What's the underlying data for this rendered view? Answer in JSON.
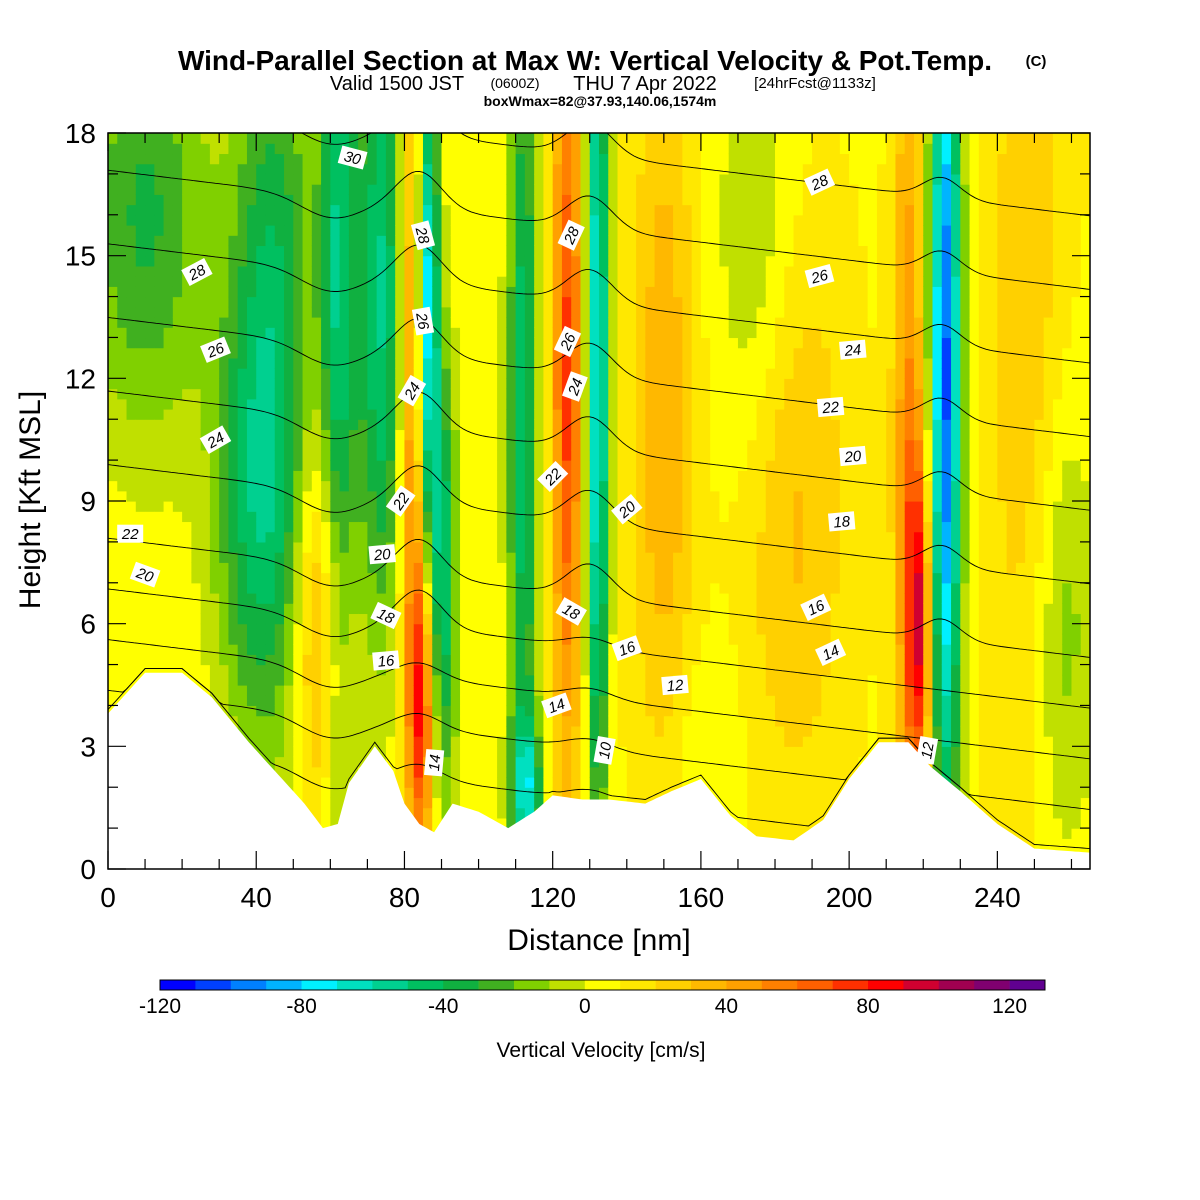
{
  "header": {
    "title": "Wind-Parallel Section at Max W: Vertical Velocity & Pot.Temp.",
    "title_mark": "(C)",
    "valid_prefix": "Valid 1500 JST",
    "valid_z": "(0600Z)",
    "valid_date": "THU 7 Apr 2022",
    "valid_fcst": "[24hrFcst@1133z]",
    "box_info": "boxWmax=82@37.93,140.06,1574m"
  },
  "chart_data": {
    "type": "heatmap",
    "xlabel": "Distance [nm]",
    "ylabel": "Height [Kft MSL]",
    "xlim": [
      0,
      265
    ],
    "ylim": [
      0,
      18
    ],
    "x_ticks": [
      0,
      40,
      80,
      120,
      160,
      200,
      240
    ],
    "y_ticks": [
      0,
      3,
      6,
      9,
      12,
      15,
      18
    ],
    "x_minor_step": 10,
    "y_minor_step": 1,
    "colorbar": {
      "label": "Vertical Velocity [cm/s]",
      "min": -120,
      "max": 130,
      "step": 10,
      "tick_values": [
        -120,
        -80,
        -40,
        0,
        40,
        80,
        120
      ],
      "colors": [
        "#0000ff",
        "#0040ff",
        "#0080ff",
        "#00b4ff",
        "#00f0ff",
        "#00e0c0",
        "#00d090",
        "#00c060",
        "#10b040",
        "#40b020",
        "#80d000",
        "#c0e000",
        "#ffff00",
        "#ffe800",
        "#ffd000",
        "#ffb800",
        "#ffa000",
        "#ff8000",
        "#ff6000",
        "#ff3000",
        "#ff0000",
        "#d00030",
        "#a00050",
        "#800070",
        "#600090"
      ]
    },
    "terrain_kft": [
      [
        0,
        3.8
      ],
      [
        5,
        4.3
      ],
      [
        10,
        4.8
      ],
      [
        20,
        4.8
      ],
      [
        28,
        4.2
      ],
      [
        38,
        3.1
      ],
      [
        45,
        2.4
      ],
      [
        53,
        1.6
      ],
      [
        58,
        1.0
      ],
      [
        62,
        1.1
      ],
      [
        65,
        2.1
      ],
      [
        72,
        3.0
      ],
      [
        77,
        2.4
      ],
      [
        80,
        1.6
      ],
      [
        84,
        1.1
      ],
      [
        88,
        0.9
      ],
      [
        93,
        1.6
      ],
      [
        100,
        1.4
      ],
      [
        108,
        1.0
      ],
      [
        115,
        1.4
      ],
      [
        120,
        1.8
      ],
      [
        128,
        1.7
      ],
      [
        135,
        1.7
      ],
      [
        145,
        1.6
      ],
      [
        152,
        1.9
      ],
      [
        160,
        2.2
      ],
      [
        168,
        1.3
      ],
      [
        175,
        0.8
      ],
      [
        185,
        0.7
      ],
      [
        193,
        1.2
      ],
      [
        200,
        2.2
      ],
      [
        208,
        3.1
      ],
      [
        216,
        3.1
      ],
      [
        222,
        2.5
      ],
      [
        230,
        1.9
      ],
      [
        240,
        1.1
      ],
      [
        250,
        0.5
      ],
      [
        265,
        0.4
      ]
    ],
    "w_features": [
      {
        "x": 10,
        "z": 16,
        "w": -40,
        "sx": 12,
        "sz": 4
      },
      {
        "x": 45,
        "z": 13,
        "w": -45,
        "sx": 8,
        "sz": 7
      },
      {
        "x": 38,
        "z": 9,
        "w": -30,
        "sx": 8,
        "sz": 4
      },
      {
        "x": 62,
        "z": 13,
        "w": -55,
        "sx": 3.5,
        "sz": 10
      },
      {
        "x": 58,
        "z": 6,
        "w": 45,
        "sx": 5,
        "sz": 3.5
      },
      {
        "x": 74,
        "z": 14,
        "w": -60,
        "sx": 5,
        "sz": 6
      },
      {
        "x": 83,
        "z": 12,
        "w": 70,
        "sx": 3,
        "sz": 7
      },
      {
        "x": 86,
        "z": 14,
        "w": -110,
        "sx": 2.2,
        "sz": 4.5
      },
      {
        "x": 90,
        "z": 7,
        "w": -60,
        "sx": 3,
        "sz": 4
      },
      {
        "x": 85,
        "z": 4,
        "w": 60,
        "sx": 2.5,
        "sz": 2.5
      },
      {
        "x": 112,
        "z": 11,
        "w": -55,
        "sx": 3,
        "sz": 8
      },
      {
        "x": 113,
        "z": 2,
        "w": -55,
        "sx": 3,
        "sz": 1.2
      },
      {
        "x": 124,
        "z": 12,
        "w": 65,
        "sx": 3,
        "sz": 7
      },
      {
        "x": 132,
        "z": 12,
        "w": -85,
        "sx": 2.2,
        "sz": 8
      },
      {
        "x": 150,
        "z": 11,
        "w": 30,
        "sx": 6,
        "sz": 7
      },
      {
        "x": 175,
        "z": 15,
        "w": -20,
        "sx": 8,
        "sz": 4
      },
      {
        "x": 185,
        "z": 9,
        "w": 25,
        "sx": 10,
        "sz": 5
      },
      {
        "x": 160,
        "z": 3,
        "w": -10,
        "sx": 8,
        "sz": 2
      },
      {
        "x": 219,
        "z": 6,
        "w": 70,
        "sx": 2.5,
        "sz": 3
      },
      {
        "x": 226,
        "z": 12,
        "w": -110,
        "sx": 3,
        "sz": 8
      },
      {
        "x": 216,
        "z": 11,
        "w": 40,
        "sx": 3,
        "sz": 8
      },
      {
        "x": 248,
        "z": 13,
        "w": 20,
        "sx": 8,
        "sz": 8
      },
      {
        "x": 258,
        "z": 6,
        "w": -25,
        "sx": 6,
        "sz": 4
      }
    ],
    "theta_contours": {
      "levels": [
        10,
        12,
        14,
        16,
        18,
        20,
        22,
        24,
        26,
        28,
        30
      ],
      "labels": [
        {
          "text": "30",
          "x": 66,
          "z": 17.4,
          "rot": 15
        },
        {
          "text": "28",
          "x": 24,
          "z": 14.6,
          "rot": -28
        },
        {
          "text": "26",
          "x": 29,
          "z": 12.7,
          "rot": -22
        },
        {
          "text": "24",
          "x": 29,
          "z": 10.5,
          "rot": -30
        },
        {
          "text": "22",
          "x": 6,
          "z": 8.2,
          "rot": 0
        },
        {
          "text": "20",
          "x": 10,
          "z": 7.2,
          "rot": 20
        },
        {
          "text": "28",
          "x": 85,
          "z": 15.5,
          "rot": 75
        },
        {
          "text": "26",
          "x": 85,
          "z": 13.4,
          "rot": 80
        },
        {
          "text": "24",
          "x": 82,
          "z": 11.7,
          "rot": -60
        },
        {
          "text": "22",
          "x": 79,
          "z": 9.0,
          "rot": -55
        },
        {
          "text": "20",
          "x": 74,
          "z": 7.7,
          "rot": -5
        },
        {
          "text": "18",
          "x": 75,
          "z": 6.2,
          "rot": 25
        },
        {
          "text": "16",
          "x": 75,
          "z": 5.1,
          "rot": -5
        },
        {
          "text": "14",
          "x": 88,
          "z": 2.6,
          "rot": -85
        },
        {
          "text": "28",
          "x": 125,
          "z": 15.5,
          "rot": -65
        },
        {
          "text": "26",
          "x": 124,
          "z": 12.9,
          "rot": -65
        },
        {
          "text": "24",
          "x": 126,
          "z": 11.8,
          "rot": -70
        },
        {
          "text": "22",
          "x": 120,
          "z": 9.6,
          "rot": -45
        },
        {
          "text": "20",
          "x": 140,
          "z": 8.8,
          "rot": -40
        },
        {
          "text": "18",
          "x": 125,
          "z": 6.3,
          "rot": 30
        },
        {
          "text": "16",
          "x": 140,
          "z": 5.4,
          "rot": -20
        },
        {
          "text": "14",
          "x": 121,
          "z": 4.0,
          "rot": -20
        },
        {
          "text": "12",
          "x": 153,
          "z": 4.5,
          "rot": -5
        },
        {
          "text": "10",
          "x": 134,
          "z": 2.9,
          "rot": -80
        },
        {
          "text": "28",
          "x": 192,
          "z": 16.8,
          "rot": -25
        },
        {
          "text": "26",
          "x": 192,
          "z": 14.5,
          "rot": -15
        },
        {
          "text": "24",
          "x": 201,
          "z": 12.7,
          "rot": -5
        },
        {
          "text": "22",
          "x": 195,
          "z": 11.3,
          "rot": -5
        },
        {
          "text": "20",
          "x": 201,
          "z": 10.1,
          "rot": -5
        },
        {
          "text": "18",
          "x": 198,
          "z": 8.5,
          "rot": -5
        },
        {
          "text": "16",
          "x": 191,
          "z": 6.4,
          "rot": -25
        },
        {
          "text": "14",
          "x": 195,
          "z": 5.3,
          "rot": -25
        },
        {
          "text": "12",
          "x": 221,
          "z": 2.9,
          "rot": -80
        }
      ]
    }
  }
}
